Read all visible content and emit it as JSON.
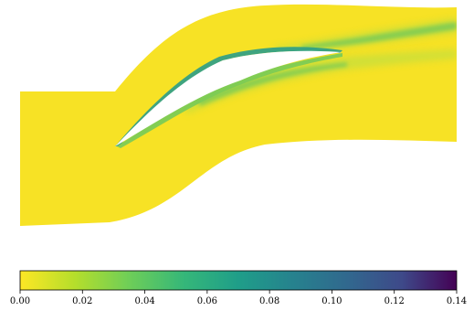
{
  "figure": {
    "colormap": "viridis_r",
    "colorbar": {
      "min": 0.0,
      "max": 0.14,
      "orientation": "horizontal",
      "ticks": [
        "0.00",
        "0.02",
        "0.04",
        "0.06",
        "0.08",
        "0.10",
        "0.12",
        "0.14"
      ],
      "stops": [
        {
          "offset": 0.0,
          "color": "#fde725"
        },
        {
          "offset": 0.125,
          "color": "#b5de2b"
        },
        {
          "offset": 0.25,
          "color": "#6ece58"
        },
        {
          "offset": 0.375,
          "color": "#35b779"
        },
        {
          "offset": 0.5,
          "color": "#1f9e89"
        },
        {
          "offset": 0.625,
          "color": "#26828e"
        },
        {
          "offset": 0.75,
          "color": "#31688e"
        },
        {
          "offset": 0.875,
          "color": "#3e4989"
        },
        {
          "offset": 1.0,
          "color": "#440154"
        }
      ]
    },
    "colors": {
      "background_field": "#f7e225",
      "wake_light": "#c9df3a",
      "wake_mid": "#7ccb55",
      "wake_dark": "#2a9d8a",
      "blade_gap": "#ffffff"
    }
  }
}
